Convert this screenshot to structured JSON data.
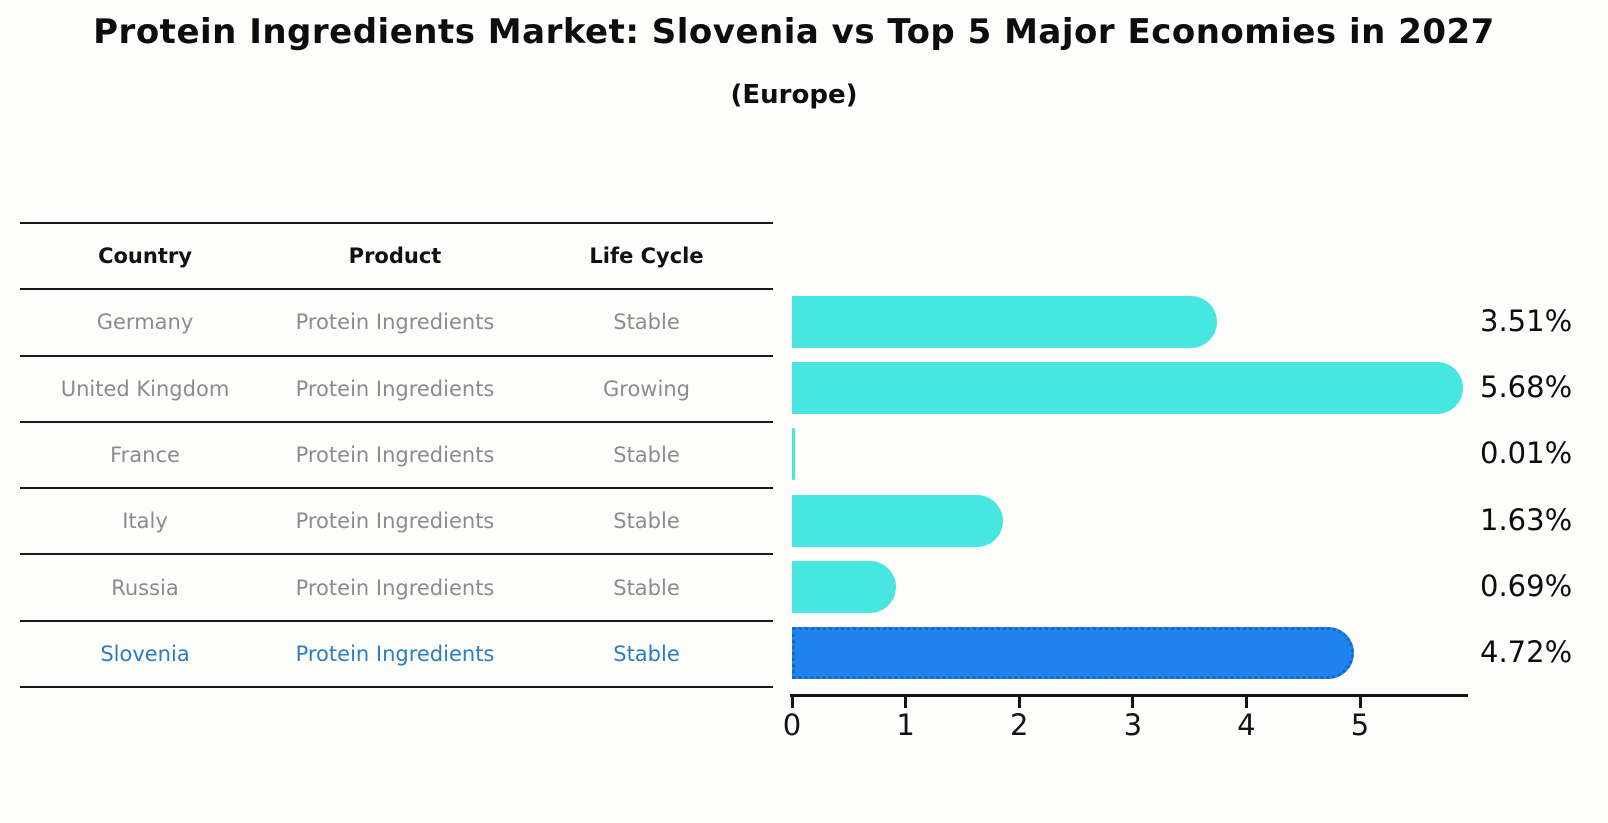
{
  "title": "Protein Ingredients Market: Slovenia vs Top 5 Major Economies in 2027",
  "subtitle": "(Europe)",
  "colors": {
    "bar": "#48e6e0",
    "highlight_bar": "#1e83ec",
    "highlight_bar_border": "#1a68c6",
    "highlight_text": "#2e7ebd",
    "row_text": "#8c8c8c",
    "header_text": "#111111",
    "axis": "#141414"
  },
  "table": {
    "headers": [
      "Country",
      "Product",
      "Life Cycle"
    ],
    "rows": [
      {
        "country": "Germany",
        "product": "Protein Ingredients",
        "life_cycle": "Stable",
        "highlight": false
      },
      {
        "country": "United Kingdom",
        "product": "Protein Ingredients",
        "life_cycle": "Growing",
        "highlight": false
      },
      {
        "country": "France",
        "product": "Protein Ingredients",
        "life_cycle": "Stable",
        "highlight": false
      },
      {
        "country": "Italy",
        "product": "Protein Ingredients",
        "life_cycle": "Stable",
        "highlight": false
      },
      {
        "country": "Russia",
        "product": "Protein Ingredients",
        "life_cycle": "Stable",
        "highlight": false
      },
      {
        "country": "Slovenia",
        "product": "Protein Ingredients",
        "life_cycle": "Stable",
        "highlight": true
      }
    ]
  },
  "chart_data": {
    "type": "bar",
    "orientation": "horizontal",
    "title": "Protein Ingredients Market: Slovenia vs Top 5 Major Economies in 2027 (Europe)",
    "categories": [
      "Germany",
      "United Kingdom",
      "France",
      "Italy",
      "Russia",
      "Slovenia"
    ],
    "values": [
      3.51,
      5.68,
      0.01,
      1.63,
      0.69,
      4.72
    ],
    "value_labels": [
      "3.51%",
      "5.68%",
      "0.01%",
      "1.63%",
      "0.69%",
      "4.72%"
    ],
    "highlight_category": "Slovenia",
    "xlim": [
      0,
      5.95
    ],
    "xticks": [
      0,
      1,
      2,
      3,
      4,
      5
    ],
    "xlabel": "",
    "ylabel": "",
    "grid": false,
    "legend": false
  }
}
